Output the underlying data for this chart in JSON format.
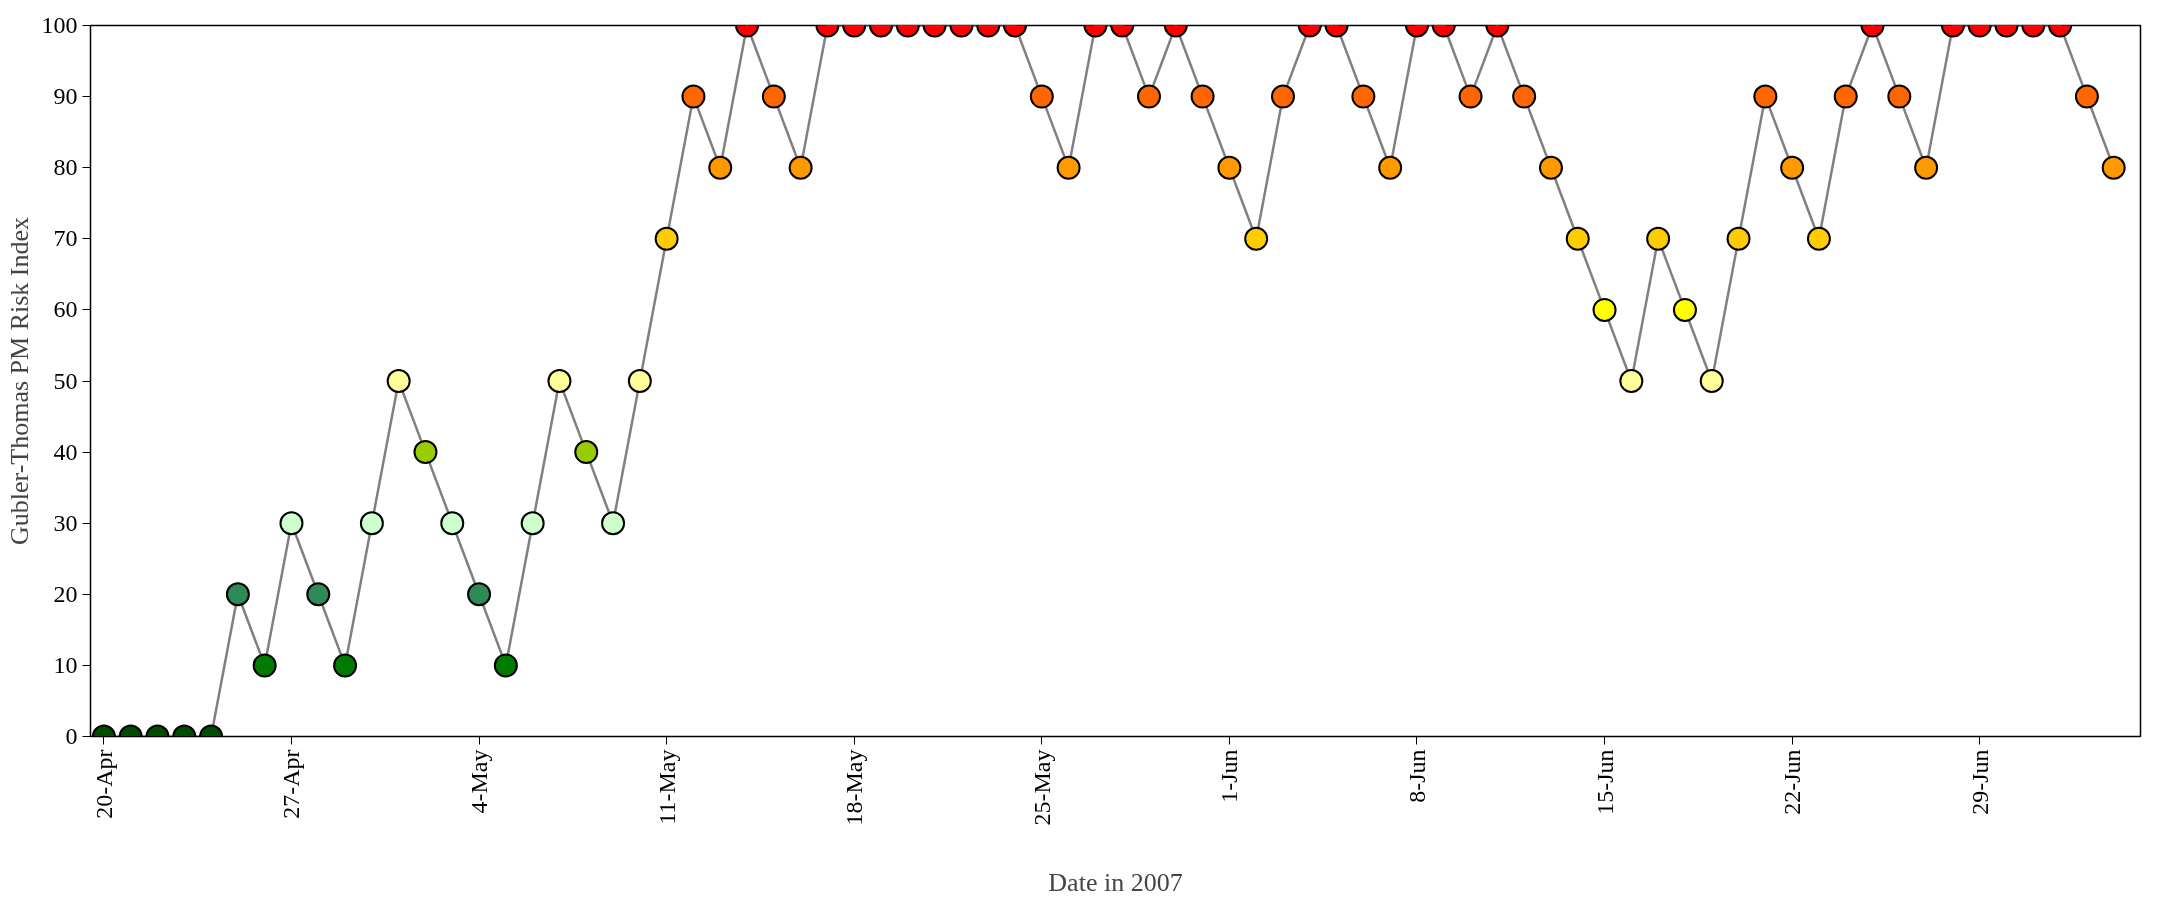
{
  "chart_data": {
    "type": "line",
    "xlabel": "Date in 2007",
    "ylabel": "Gubler-Thomas PM Risk Index",
    "xlim": [
      "2007-04-19T12:00",
      "2007-07-05"
    ],
    "ylim": [
      0,
      100
    ],
    "yticks": [
      0,
      10,
      20,
      30,
      40,
      50,
      60,
      70,
      80,
      90,
      100
    ],
    "xticks": [
      {
        "value": "2007-04-20",
        "label": "20-Apr"
      },
      {
        "value": "2007-04-27",
        "label": "27-Apr"
      },
      {
        "value": "2007-05-04",
        "label": "4-May"
      },
      {
        "value": "2007-05-11",
        "label": "11-May"
      },
      {
        "value": "2007-05-18",
        "label": "18-May"
      },
      {
        "value": "2007-05-25",
        "label": "25-May"
      },
      {
        "value": "2007-06-01",
        "label": "1-Jun"
      },
      {
        "value": "2007-06-08",
        "label": "8-Jun"
      },
      {
        "value": "2007-06-15",
        "label": "15-Jun"
      },
      {
        "value": "2007-06-22",
        "label": "22-Jun"
      },
      {
        "value": "2007-06-29",
        "label": "29-Jun"
      }
    ],
    "grid": false,
    "marker": "circle",
    "line_style": "solid",
    "x": [
      "2007-04-20",
      "2007-04-21",
      "2007-04-22",
      "2007-04-23",
      "2007-04-24",
      "2007-04-25",
      "2007-04-26",
      "2007-04-27",
      "2007-04-28",
      "2007-04-29",
      "2007-04-30",
      "2007-05-01",
      "2007-05-02",
      "2007-05-03",
      "2007-05-04",
      "2007-05-05",
      "2007-05-06",
      "2007-05-07",
      "2007-05-08",
      "2007-05-09",
      "2007-05-10",
      "2007-05-11",
      "2007-05-12",
      "2007-05-13",
      "2007-05-14",
      "2007-05-15",
      "2007-05-16",
      "2007-05-17",
      "2007-05-18",
      "2007-05-19",
      "2007-05-20",
      "2007-05-21",
      "2007-05-22",
      "2007-05-23",
      "2007-05-24",
      "2007-05-25",
      "2007-05-26",
      "2007-05-27",
      "2007-05-28",
      "2007-05-29",
      "2007-05-30",
      "2007-05-31",
      "2007-06-01",
      "2007-06-02",
      "2007-06-03",
      "2007-06-04",
      "2007-06-05",
      "2007-06-06",
      "2007-06-07",
      "2007-06-08",
      "2007-06-09",
      "2007-06-10",
      "2007-06-11",
      "2007-06-12",
      "2007-06-13",
      "2007-06-14",
      "2007-06-15",
      "2007-06-16",
      "2007-06-17",
      "2007-06-18",
      "2007-06-19",
      "2007-06-20",
      "2007-06-21",
      "2007-06-22",
      "2007-06-23",
      "2007-06-24",
      "2007-06-25",
      "2007-06-26",
      "2007-06-27",
      "2007-06-28",
      "2007-06-29",
      "2007-06-30",
      "2007-07-01",
      "2007-07-02",
      "2007-07-03",
      "2007-07-04"
    ],
    "series": [
      {
        "color": "#808080",
        "values": [
          0,
          0,
          0,
          0,
          0,
          20,
          10,
          30,
          20,
          10,
          30,
          50,
          40,
          30,
          20,
          10,
          30,
          50,
          40,
          30,
          50,
          70,
          90,
          80,
          100,
          90,
          80,
          100,
          100,
          100,
          100,
          100,
          100,
          100,
          100,
          90,
          80,
          100,
          100,
          90,
          100,
          90,
          80,
          70,
          90,
          100,
          100,
          90,
          80,
          100,
          100,
          90,
          100,
          90,
          80,
          70,
          60,
          50,
          70,
          60,
          50,
          70,
          90,
          80,
          70,
          90,
          100,
          90,
          80,
          100,
          100,
          100,
          100,
          100,
          90,
          80
        ],
        "colors": [
          "#004d00",
          "#004d00",
          "#004d00",
          "#004d00",
          "#004d00",
          "#2e8b57",
          "#007a00",
          "#ccffcc",
          "#2e8b57",
          "#007a00",
          "#ccffcc",
          "#ffff99",
          "#99cc00",
          "#ccffcc",
          "#2e8b57",
          "#007a00",
          "#ccffcc",
          "#ffff99",
          "#99cc00",
          "#ccffcc",
          "#ffff99",
          "#ffcc00",
          "#ff6600",
          "#ff9900",
          "#ff0000",
          "#ff6600",
          "#ff9900",
          "#ff0000",
          "#ff0000",
          "#ff0000",
          "#ff0000",
          "#ff0000",
          "#ff0000",
          "#ff0000",
          "#ff0000",
          "#ff6600",
          "#ff9900",
          "#ff0000",
          "#ff0000",
          "#ff6600",
          "#ff0000",
          "#ff6600",
          "#ff9900",
          "#ffcc00",
          "#ff6600",
          "#ff0000",
          "#ff0000",
          "#ff6600",
          "#ff9900",
          "#ff0000",
          "#ff0000",
          "#ff6600",
          "#ff0000",
          "#ff6600",
          "#ff9900",
          "#ffcc00",
          "#ffff00",
          "#ffff99",
          "#ffcc00",
          "#ffff00",
          "#ffff99",
          "#ffcc00",
          "#ff6600",
          "#ff9900",
          "#ffcc00",
          "#ff6600",
          "#ff0000",
          "#ff6600",
          "#ff9900",
          "#ff0000",
          "#ff0000",
          "#ff0000",
          "#ff0000",
          "#ff0000",
          "#ff6600",
          "#ff9900"
        ]
      }
    ]
  }
}
